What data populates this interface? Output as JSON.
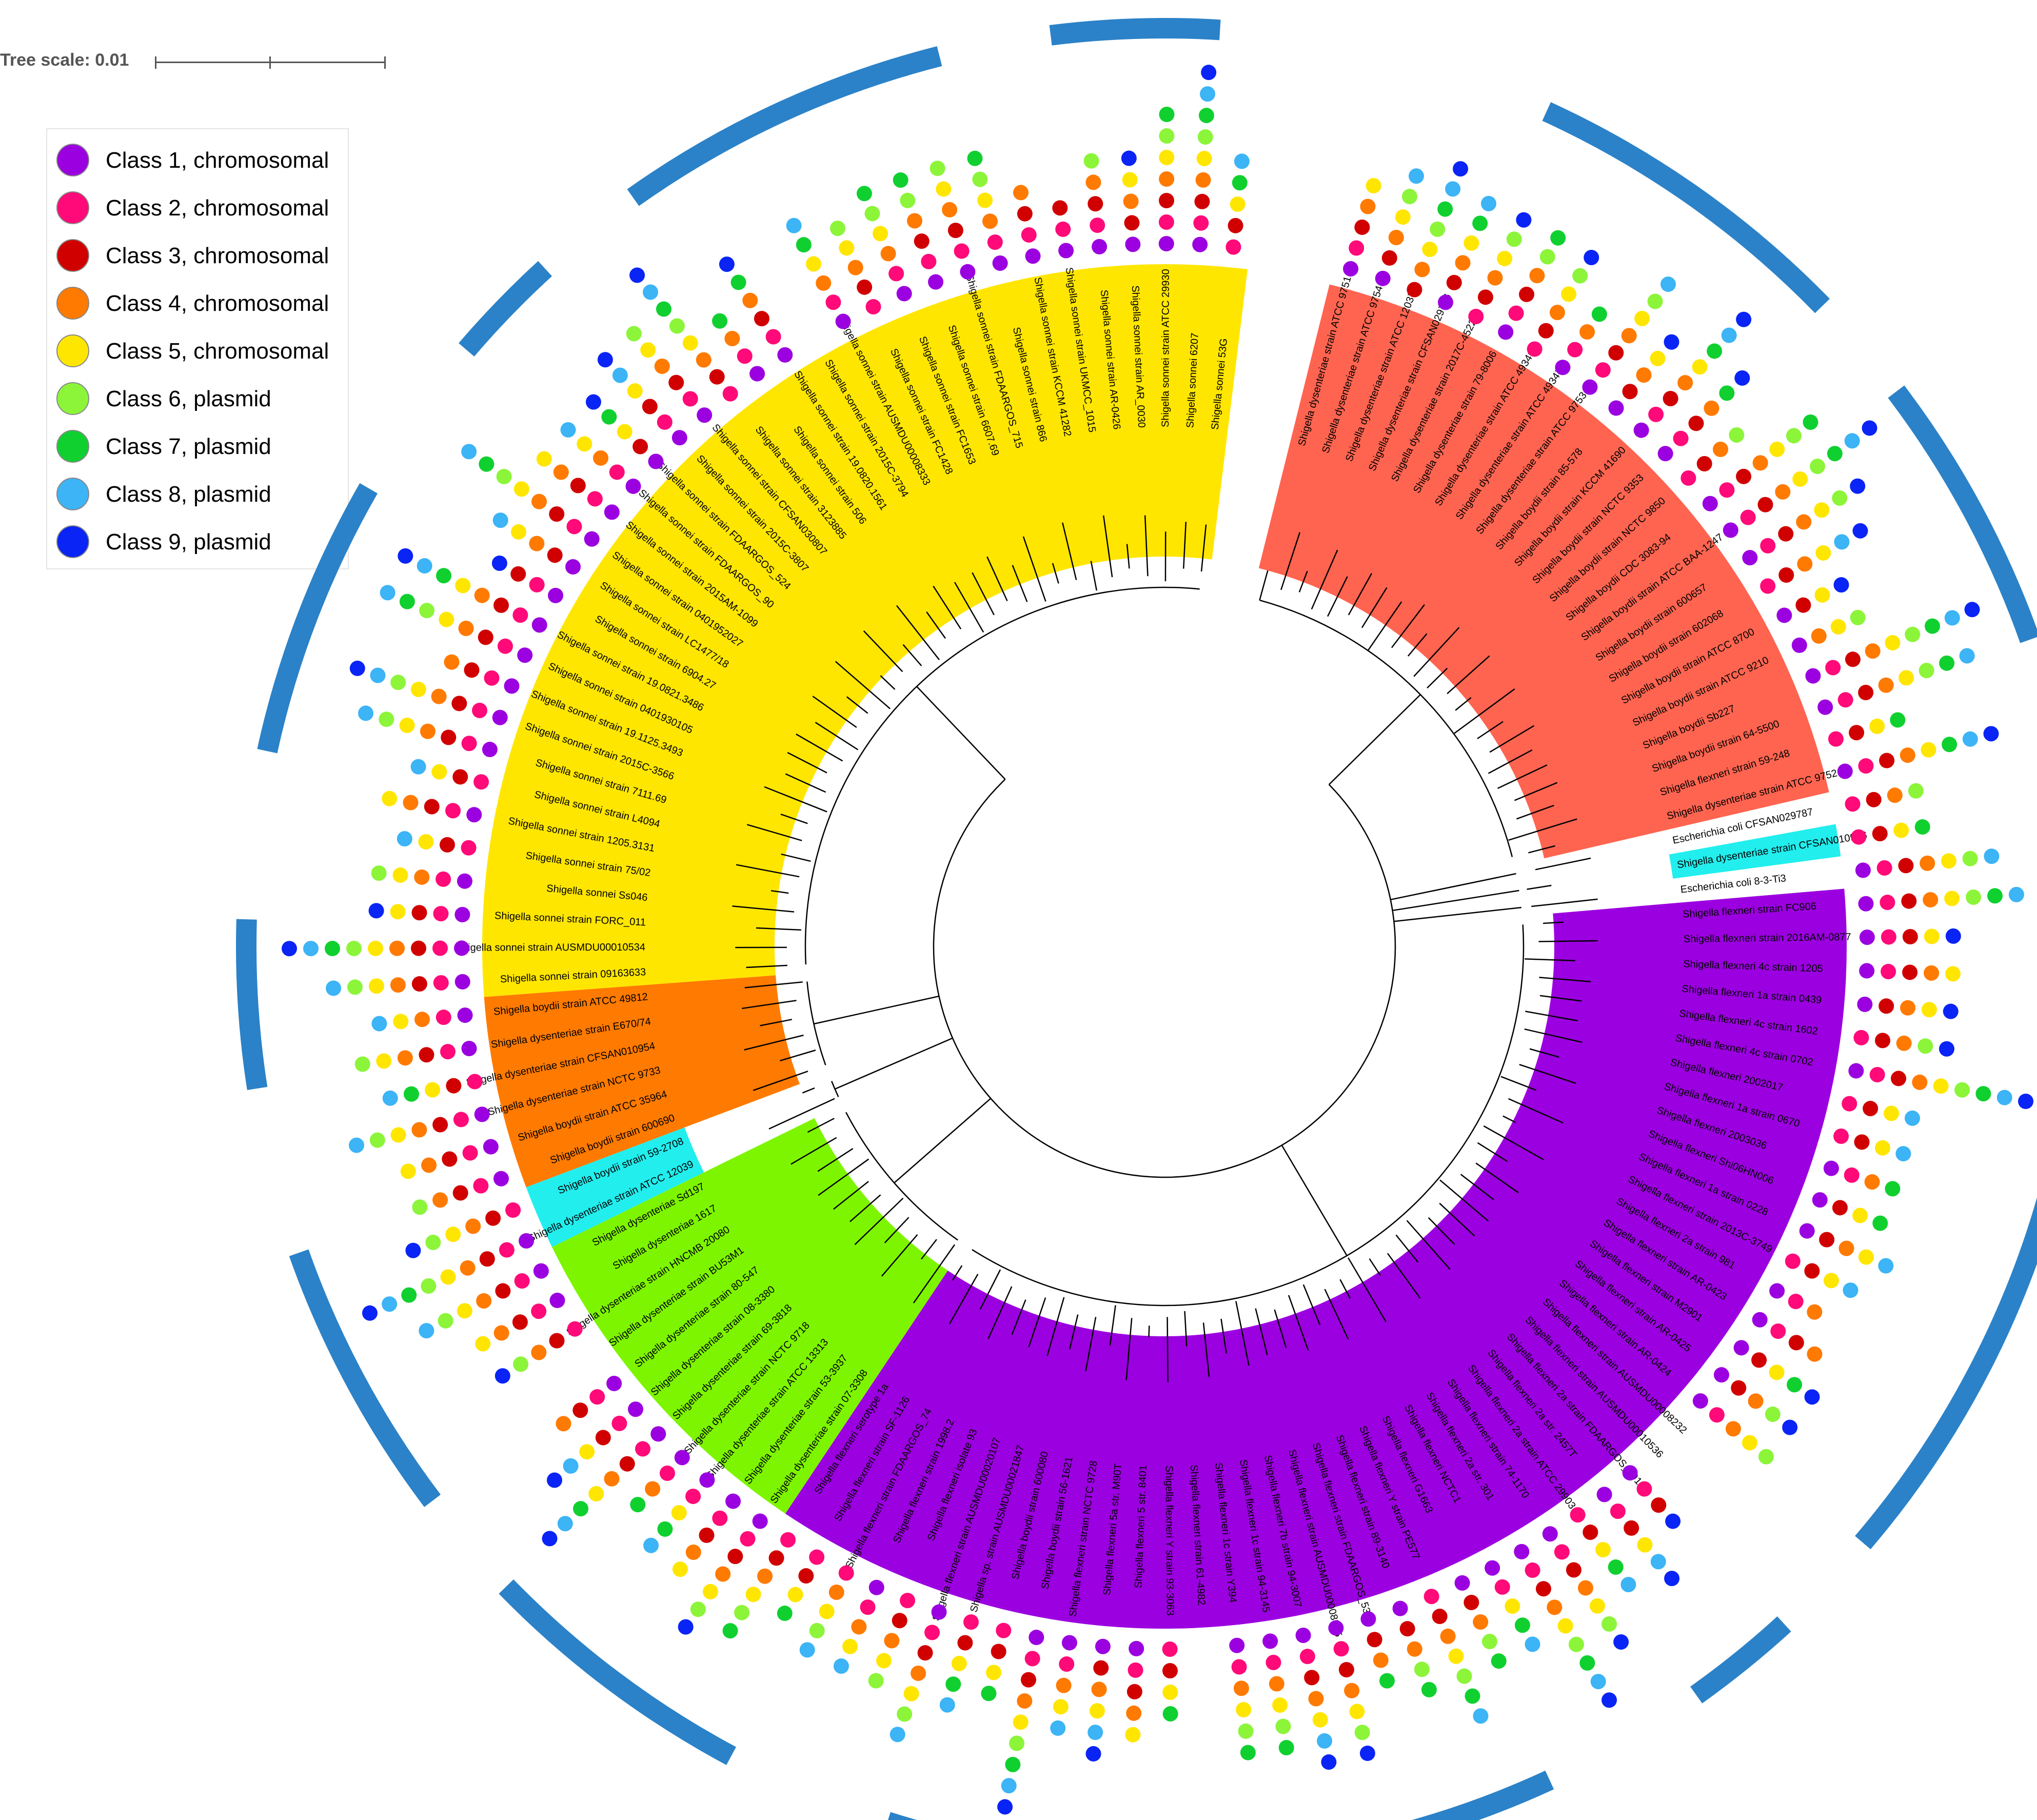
{
  "scale": {
    "label": "Tree scale: 0.01"
  },
  "legend": [
    {
      "label": "Class 1, chromosomal",
      "color": "#9b00e0"
    },
    {
      "label": "Class 2, chromosomal",
      "color": "#ff0a78"
    },
    {
      "label": "Class 3, chromosomal",
      "color": "#d10000"
    },
    {
      "label": "Class 4, chromosomal",
      "color": "#ff7a00"
    },
    {
      "label": "Class 5, chromosomal",
      "color": "#ffe600"
    },
    {
      "label": "Class 6, plasmid",
      "color": "#8cf53a"
    },
    {
      "label": "Class 7, plasmid",
      "color": "#10d030"
    },
    {
      "label": "Class 8, plasmid",
      "color": "#3cb4f5"
    },
    {
      "label": "Class 9, plasmid",
      "color": "#0a24f5"
    }
  ],
  "colors": {
    "boydii_dysenteriae_a": "#ff6450",
    "sonnei": "#ffe600",
    "boydii_dysenteriae_b": "#ff7a00",
    "dysenteriae_c": "#7ef500",
    "flexneri": "#9b00e0",
    "cyan": "#22eeee",
    "outer_arc": "#2b82c8",
    "branch": "#000000"
  },
  "clades": [
    {
      "key": "boydii_dysenteriae_a",
      "leaves": [
        "Shigella dysenteriae strain ATCC 9751",
        "Shigella dysenteriae strain ATCC 9754",
        "Shigella dysenteriae strain ATCC 12037",
        "Shigella dysenteriae strain CFSAN029786",
        "Shigella dysenteriae strain 2017C-4522",
        "Shigella dysenteriae strain 79-8006",
        "Shigella dysenteriae strain ATCC 49346",
        "Shigella dysenteriae strain ATCC 49347",
        "Shigella dysenteriae strain ATCC 9753",
        "Shigella boydii strain 85-578",
        "Shigella boydii strain KCCM 41690",
        "Shigella boydii strain NCTC 9353",
        "Shigella boydii strain NCTC 9850",
        "Shigella boydii CDC 3083-94",
        "Shigella boydii strain ATCC BAA-1247",
        "Shigella boydii strain 600657",
        "Shigella boydii strain 602068",
        "Shigella boydii strain ATCC 8700",
        "Shigella boydii strain ATCC 9210",
        "Shigella boydii Sb227",
        "Shigella boydii strain 64-5500",
        "Shigella flexneri strain 59-248",
        "Shigella dysenteriae strain ATCC 9752"
      ]
    },
    {
      "key": "white",
      "leaves": [
        "Escherichia coli CFSAN029787"
      ]
    },
    {
      "key": "cyan",
      "leaves": [
        "Shigella dysenteriae strain CFSAN010956"
      ]
    },
    {
      "key": "white",
      "leaves": [
        "Escherichia coli 8-3-Ti3"
      ]
    },
    {
      "key": "flexneri",
      "leaves": [
        "Shigella flexneri strain FC906",
        "Shigella flexneri strain 2016AM-0877",
        "Shigella flexneri 4c strain 1205",
        "Shigella flexneri 1a strain 0439",
        "Shigella flexneri 4c strain 1602",
        "Shigella flexneri 4c strain 0702",
        "Shigella flexneri 2002017",
        "Shigella flexneri 1a strain 0670",
        "Shigella flexneri 2003036",
        "Shigella flexneri Shi06HN006",
        "Shigella flexneri 1a strain 0228",
        "Shigella flexneri strain 2013C-3749",
        "Shigella flexneri 2a strain 981",
        "Shigella flexneri strain AR-0423",
        "Shigella flexneri strain M2901",
        "Shigella flexneri strain AR-0425",
        "Shigella flexneri strain AR-0424",
        "Shigella flexneri strain AUSMDU00008232",
        "Shigella flexneri strain AUSMDU00010536",
        "Shigella flexneri 2a strain FDAARGOS_691",
        "Shigella flexneri 2a str. 2457T",
        "Shigella flexneri 2a strain ATCC 29903",
        "Shigella flexneri strain 74-1170",
        "Shigella flexneri 2a str. 301",
        "Shigella flexneri NCTC1",
        "Shigella flexneri G1663",
        "Shigella flexneri Y strain PE577",
        "Shigella flexneri strain 89-3140",
        "Shigella flexneri strain FDAARGOS_535",
        "Shigella flexneri strain AUSMDU00008355",
        "Shigella flexneri 7b strain 94-3007",
        "Shigella flexneri 1c strain 94-3145",
        "Shigella flexneri 1c strain Y394",
        "Shigella flexneri strain 61-4982",
        "Shigella flexneri Y strain 93-3063",
        "Shigella flexneri 5 str. 8401",
        "Shigella flexneri 5a str. M90T",
        "Shigella flexneri strain NCTC 9728",
        "Shigella boydii strain 56-1621",
        "Shigella boydii strain 600080",
        "Shigella sp. strain AUSMDU00021847",
        "Shigella flexneri strain AUSMDU00020107",
        "Shigella flexneri isolate 93",
        "Shigella flexneri strain 1998.2",
        "Shigella flexneri strain FDAARGOS_74",
        "Shigella flexneri strain SF-1126",
        "Shigella flexneri serotype 1a"
      ]
    },
    {
      "key": "dysenteriae_c",
      "leaves": [
        "Shigella dysenteriae strain 07-3308",
        "Shigella dysenteriae strain 53-3937",
        "Shigella dysenteriae strain ATCC 13313",
        "Shigella dysenteriae strain NCTC 9718",
        "Shigella dysenteriae strain 69-3818",
        "Shigella dysenteriae strain 08-3380",
        "Shigella dysenteriae strain 80-547",
        "Shigella dysenteriae strain BU53M1",
        "Shigella dysenteriae strain HNCMB 20080",
        "Shigella dysenteriae 1617",
        "Shigella dysenteriae Sd197"
      ]
    },
    {
      "key": "cyan",
      "leaves": [
        "Shigella dysenteriae strain ATCC 12039",
        "Shigella boydii strain 59-2708"
      ]
    },
    {
      "key": "boydii_dysenteriae_b",
      "leaves": [
        "Shigella boydii strain 600690",
        "Shigella boydii strain ATCC 35964",
        "Shigella dysenteriae strain NCTC 9733",
        "Shigella dysenteriae strain CFSAN010954",
        "Shigella dysenteriae strain E670/74",
        "Shigella boydii strain ATCC 49812"
      ]
    },
    {
      "key": "sonnei",
      "leaves": [
        "Shigella sonnei strain 09163633",
        "Shigella sonnei strain AUSMDU00010534",
        "Shigella sonnei strain FORC_011",
        "Shigella sonnei Ss046",
        "Shigella sonnei strain 75/02",
        "Shigella sonnei strain 1205.3131",
        "Shigella sonnei strain L4094",
        "Shigella sonnei strain 7111.69",
        "Shigella sonnei strain 2015C-3566",
        "Shigella sonnei strain 19.1125.3493",
        "Shigella sonnei strain 0401930105",
        "Shigella sonnei strain 19.0821.3486",
        "Shigella sonnei strain 6904.27",
        "Shigella sonnei strain LC1477/18",
        "Shigella sonnei strain 0401952027",
        "Shigella sonnei strain 2015AM-1099",
        "Shigella sonnei strain FDAARGOS_90",
        "Shigella sonnei strain FDAARGOS_524",
        "Shigella sonnei strain 2015C-3807",
        "Shigella sonnei strain CFSAN030807",
        "Shigella sonnei strain 3123885",
        "Shigella sonnei strain 506",
        "Shigella sonnei strain 19.0820.1561",
        "Shigella sonnei strain 2015C-3794",
        "Shigella sonnei strain AUSMDU00008333",
        "Shigella sonnei strain FC1428",
        "Shigella sonnei strain FC1653",
        "Shigella sonnei strain 6607.69",
        "Shigella sonnei strain FDAARGOS_715",
        "Shigella sonnei strain 866",
        "Shigella sonnei strain KCCM 41282",
        "Shigella sonnei strain UKMCC_1015",
        "Shigella sonnei strain AR-0426",
        "Shigella sonnei strain AR_0030",
        "Shigella sonnei strain ATCC 29930",
        "Shigella sonnei 6207",
        "Shigella sonnei 53G"
      ]
    }
  ]
}
